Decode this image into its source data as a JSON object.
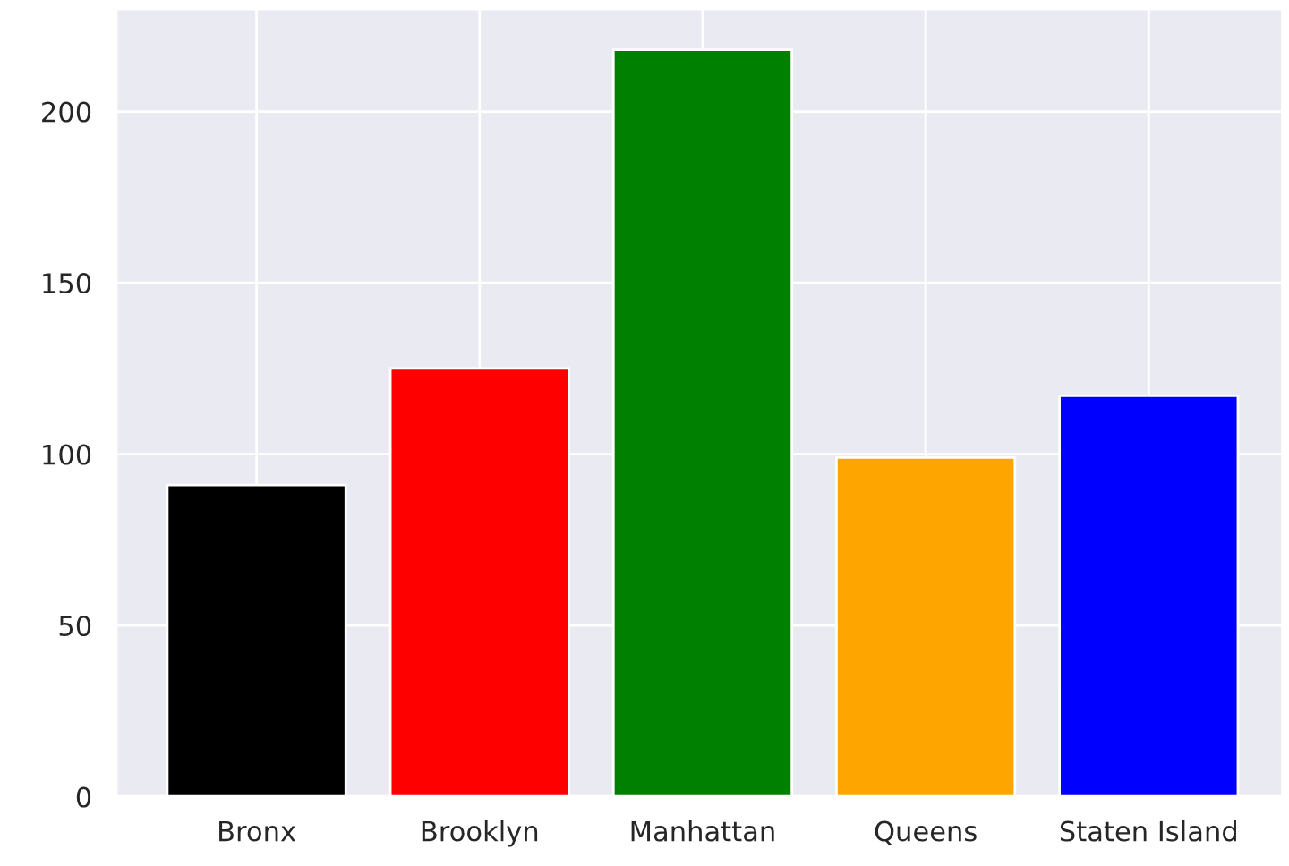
{
  "chart_data": {
    "type": "bar",
    "categories": [
      "Bronx",
      "Brooklyn",
      "Manhattan",
      "Queens",
      "Staten Island"
    ],
    "values": [
      91,
      125,
      218,
      99,
      117
    ],
    "colors": [
      "#000000",
      "#ff0000",
      "#008000",
      "#ffa500",
      "#0000ff"
    ],
    "ylim": [
      0,
      230
    ],
    "yticks": [
      0,
      50,
      100,
      150,
      200
    ],
    "grid": true
  }
}
